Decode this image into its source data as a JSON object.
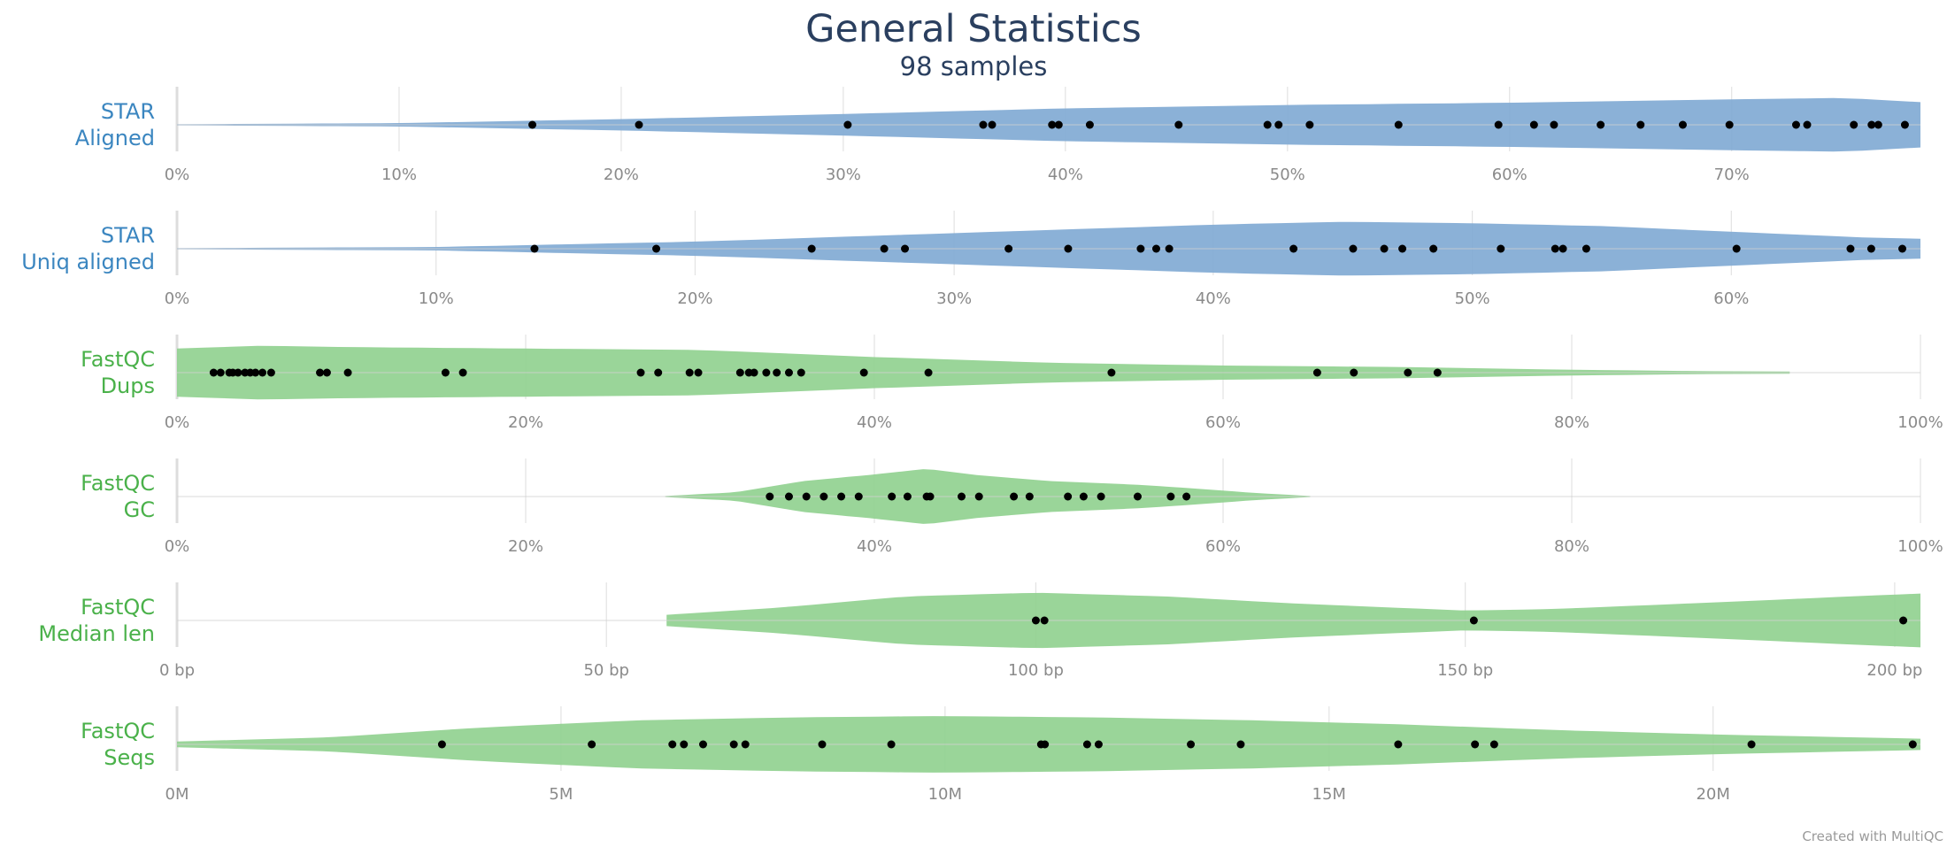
{
  "title": "General Statistics",
  "subtitle": "98 samples",
  "credit": "Created with MultiQC",
  "colors": {
    "blue": "#7ea9d3",
    "blue_label": "#3b86c0",
    "green": "#8fd08e",
    "green_label": "#4ab14a",
    "point": "#000000",
    "grid": "#e0e0e0",
    "tick": "#8a8a8a"
  },
  "chart_data": {
    "type": "violin",
    "rows": [
      {
        "label_line1": "STAR",
        "label_line2": "Aligned",
        "color": "#7ea9d3",
        "label_color": "#3b86c0",
        "range": [
          0,
          78.5
        ],
        "ticks": [
          {
            "v": 0,
            "label": "0%"
          },
          {
            "v": 10,
            "label": "10%"
          },
          {
            "v": 20,
            "label": "20%"
          },
          {
            "v": 30,
            "label": "30%"
          },
          {
            "v": 40,
            "label": "40%"
          },
          {
            "v": 50,
            "label": "50%"
          },
          {
            "v": 60,
            "label": "60%"
          },
          {
            "v": 70,
            "label": "70%"
          }
        ],
        "violin_min": 0,
        "violin_max": 78.5,
        "density": [
          [
            0,
            0.02
          ],
          [
            10,
            0.06
          ],
          [
            20,
            0.2
          ],
          [
            30,
            0.38
          ],
          [
            40,
            0.58
          ],
          [
            50,
            0.7
          ],
          [
            60,
            0.78
          ],
          [
            70,
            0.9
          ],
          [
            75,
            0.95
          ],
          [
            78.5,
            0.8
          ]
        ],
        "points": [
          16,
          20.8,
          30.2,
          36.3,
          36.7,
          39.4,
          39.7,
          41.1,
          45.1,
          49.1,
          49.6,
          51,
          55,
          59.5,
          61.1,
          62,
          64.1,
          65.9,
          67.8,
          69.9,
          72.9,
          73.4,
          75.5,
          76.3,
          76.6,
          77.8
        ]
      },
      {
        "label_line1": "STAR",
        "label_line2": "Uniq aligned",
        "color": "#7ea9d3",
        "label_color": "#3b86c0",
        "range": [
          0,
          67.3
        ],
        "ticks": [
          {
            "v": 0,
            "label": "0%"
          },
          {
            "v": 10,
            "label": "10%"
          },
          {
            "v": 20,
            "label": "20%"
          },
          {
            "v": 30,
            "label": "30%"
          },
          {
            "v": 40,
            "label": "40%"
          },
          {
            "v": 50,
            "label": "50%"
          },
          {
            "v": 60,
            "label": "60%"
          }
        ],
        "violin_min": 0,
        "violin_max": 67.3,
        "density": [
          [
            0,
            0.02
          ],
          [
            10,
            0.06
          ],
          [
            20,
            0.25
          ],
          [
            30,
            0.55
          ],
          [
            40,
            0.85
          ],
          [
            45,
            0.95
          ],
          [
            50,
            0.9
          ],
          [
            55,
            0.8
          ],
          [
            60,
            0.6
          ],
          [
            65,
            0.4
          ],
          [
            67.3,
            0.35
          ]
        ],
        "points": [
          13.8,
          18.5,
          24.5,
          27.3,
          28.1,
          32.1,
          34.4,
          37.2,
          37.8,
          38.3,
          43.1,
          45.4,
          46.6,
          47.3,
          48.5,
          51.1,
          53.2,
          53.5,
          54.4,
          60.2,
          64.6,
          65.4,
          66.6
        ]
      },
      {
        "label_line1": "FastQC",
        "label_line2": "Dups",
        "color": "#8fd08e",
        "label_color": "#4ab14a",
        "range": [
          0,
          100
        ],
        "ticks": [
          {
            "v": 0,
            "label": "0%"
          },
          {
            "v": 20,
            "label": "20%"
          },
          {
            "v": 40,
            "label": "40%"
          },
          {
            "v": 60,
            "label": "60%"
          },
          {
            "v": 80,
            "label": "80%"
          },
          {
            "v": 100,
            "label": "100%"
          }
        ],
        "violin_min": 0,
        "violin_max": 92.5,
        "density": [
          [
            0,
            0.85
          ],
          [
            5,
            0.95
          ],
          [
            10,
            0.9
          ],
          [
            20,
            0.85
          ],
          [
            30,
            0.8
          ],
          [
            40,
            0.55
          ],
          [
            50,
            0.35
          ],
          [
            60,
            0.25
          ],
          [
            70,
            0.2
          ],
          [
            80,
            0.1
          ],
          [
            88,
            0.05
          ],
          [
            92.5,
            0.04
          ]
        ],
        "points": [
          2.1,
          2.5,
          3,
          3.2,
          3.5,
          3.9,
          4.2,
          4.5,
          4.9,
          5.4,
          8.2,
          8.6,
          9.8,
          15.4,
          16.4,
          26.6,
          27.6,
          29.4,
          29.9,
          32.3,
          32.8,
          33.1,
          33.8,
          34.4,
          35.1,
          35.8,
          39.4,
          43.1,
          53.6,
          65.4,
          67.5,
          70.6,
          72.3
        ]
      },
      {
        "label_line1": "FastQC",
        "label_line2": "GC",
        "color": "#8fd08e",
        "label_color": "#4ab14a",
        "range": [
          0,
          100
        ],
        "ticks": [
          {
            "v": 0,
            "label": "0%"
          },
          {
            "v": 20,
            "label": "20%"
          },
          {
            "v": 40,
            "label": "40%"
          },
          {
            "v": 60,
            "label": "60%"
          },
          {
            "v": 80,
            "label": "80%"
          },
          {
            "v": 100,
            "label": "100%"
          }
        ],
        "violin_min": 28,
        "violin_max": 65,
        "density": [
          [
            28,
            0.02
          ],
          [
            32,
            0.15
          ],
          [
            36,
            0.55
          ],
          [
            40,
            0.78
          ],
          [
            43,
            0.98
          ],
          [
            46,
            0.75
          ],
          [
            50,
            0.55
          ],
          [
            55,
            0.42
          ],
          [
            58,
            0.3
          ],
          [
            62,
            0.12
          ],
          [
            65,
            0.02
          ]
        ],
        "points": [
          34,
          35.1,
          36.1,
          37.1,
          38.1,
          39.1,
          41,
          41.9,
          43,
          43.2,
          45,
          46,
          48,
          48.9,
          51.1,
          52,
          53,
          55.1,
          57,
          57.9
        ]
      },
      {
        "label_line1": "FastQC",
        "label_line2": "Median len",
        "color": "#8fd08e",
        "label_color": "#4ab14a",
        "range": [
          0,
          203
        ],
        "ticks": [
          {
            "v": 0,
            "label": "0 bp"
          },
          {
            "v": 50,
            "label": "50 bp"
          },
          {
            "v": 100,
            "label": "100 bp"
          },
          {
            "v": 150,
            "label": "150 bp"
          },
          {
            "v": 200,
            "label": "200 bp"
          }
        ],
        "violin_min": 57,
        "violin_max": 203,
        "density": [
          [
            57,
            0.2
          ],
          [
            70,
            0.45
          ],
          [
            85,
            0.85
          ],
          [
            100,
            0.98
          ],
          [
            115,
            0.85
          ],
          [
            130,
            0.6
          ],
          [
            150,
            0.35
          ],
          [
            160,
            0.4
          ],
          [
            180,
            0.65
          ],
          [
            195,
            0.85
          ],
          [
            203,
            0.95
          ]
        ],
        "points": [
          100,
          101,
          151,
          201
        ]
      },
      {
        "label_line1": "FastQC",
        "label_line2": "Seqs",
        "color": "#8fd08e",
        "label_color": "#4ab14a",
        "unit": "M",
        "range": [
          0,
          22.7
        ],
        "ticks": [
          {
            "v": 0,
            "label": "0M"
          },
          {
            "v": 5,
            "label": "5M"
          },
          {
            "v": 10,
            "label": "10M"
          },
          {
            "v": 15,
            "label": "15M"
          },
          {
            "v": 20,
            "label": "20M"
          }
        ],
        "violin_min": 0,
        "violin_max": 22.7,
        "density": [
          [
            0,
            0.1
          ],
          [
            2,
            0.25
          ],
          [
            4,
            0.6
          ],
          [
            6,
            0.85
          ],
          [
            8,
            0.95
          ],
          [
            10,
            1.0
          ],
          [
            12,
            0.95
          ],
          [
            14,
            0.85
          ],
          [
            16,
            0.7
          ],
          [
            18,
            0.5
          ],
          [
            20,
            0.35
          ],
          [
            22.7,
            0.2
          ]
        ],
        "points": [
          3.45,
          5.4,
          6.45,
          6.6,
          6.85,
          7.25,
          7.4,
          8.4,
          9.3,
          11.25,
          11.3,
          11.85,
          12.0,
          13.2,
          13.85,
          15.9,
          16.9,
          17.15,
          20.5,
          22.6
        ]
      }
    ]
  }
}
